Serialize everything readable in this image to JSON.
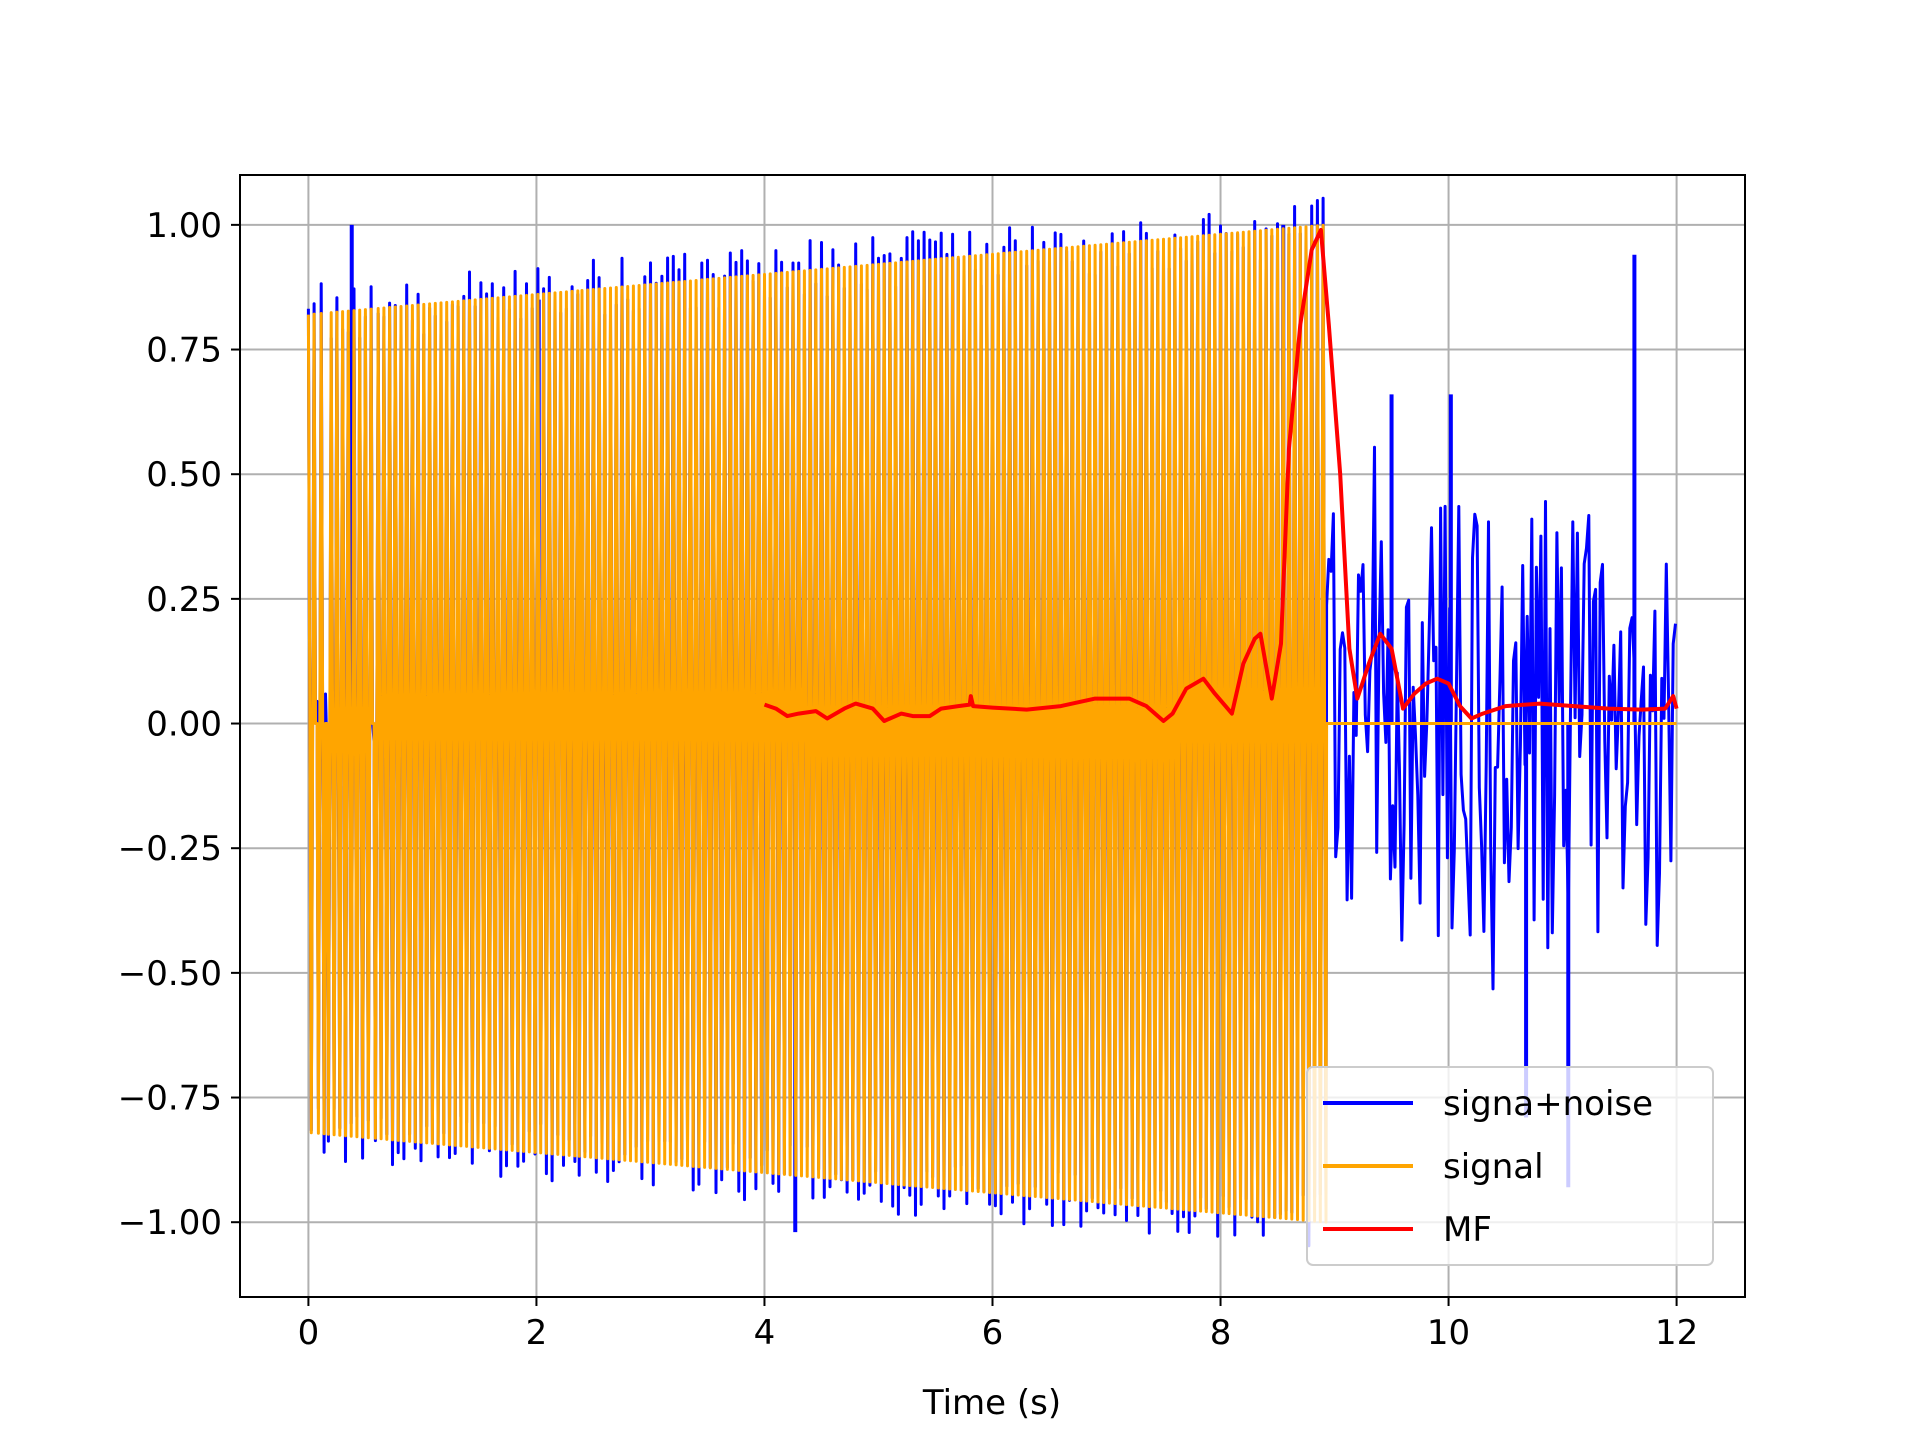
{
  "chart_data": {
    "type": "line",
    "title": "",
    "xlabel": "Time (s)",
    "ylabel": "",
    "xlim": [
      -0.6,
      12.6
    ],
    "ylim": [
      -1.15,
      1.1
    ],
    "grid": true,
    "legend_position": "lower-right",
    "x_ticks": [
      0,
      2,
      4,
      6,
      8,
      10,
      12
    ],
    "x_tick_labels": [
      "0",
      "2",
      "4",
      "6",
      "8",
      "10",
      "12"
    ],
    "y_ticks": [
      1.0,
      0.75,
      0.5,
      0.25,
      0.0,
      -0.25,
      -0.5,
      -0.75,
      -1.0
    ],
    "y_tick_labels": [
      "1.00",
      "0.75",
      "0.50",
      "0.25",
      "0.00",
      "−0.25",
      "−0.50",
      "−0.75",
      "−1.00"
    ],
    "series": [
      {
        "name": "signa+noise",
        "color": "#0000ff",
        "description_points": {
          "signal_region": {
            "x_start": 0,
            "x_end": 8.93,
            "envelope_start": 0.82,
            "envelope_end": 1.0
          },
          "noise_region": {
            "x_start": 8.93,
            "x_end": 12.0
          },
          "peaks": [
            [
              0.38,
              1.0
            ],
            [
              2.02,
              0.85
            ],
            [
              4.27,
              -1.02
            ],
            [
              8.55,
              1.0
            ],
            [
              9.5,
              0.66
            ],
            [
              10.02,
              0.66
            ],
            [
              11.63,
              0.94
            ],
            [
              10.68,
              -0.79
            ],
            [
              11.05,
              -0.93
            ]
          ]
        }
      },
      {
        "name": "signal",
        "color": "#ffa500",
        "description_points": {
          "x_start": 0,
          "x_end": 8.93,
          "envelope_start": 0.82,
          "envelope_end": 1.0,
          "zero_after": [
            8.93,
            12.0
          ]
        }
      },
      {
        "name": "MF",
        "color": "#ff0000",
        "x": [
          4.0,
          4.1,
          4.2,
          4.3,
          4.45,
          4.55,
          4.7,
          4.8,
          4.95,
          5.05,
          5.2,
          5.3,
          5.45,
          5.55,
          5.7,
          5.8,
          5.81,
          5.83,
          6.0,
          6.3,
          6.6,
          6.9,
          7.2,
          7.35,
          7.5,
          7.58,
          7.7,
          7.85,
          7.95,
          8.1,
          8.2,
          8.3,
          8.35,
          8.45,
          8.53,
          8.6,
          8.7,
          8.8,
          8.88,
          8.95,
          9.05,
          9.13,
          9.2,
          9.3,
          9.4,
          9.5,
          9.6,
          9.7,
          9.8,
          9.9,
          10.0,
          10.1,
          10.2,
          10.3,
          10.5,
          10.8,
          11.1,
          11.4,
          11.7,
          11.9,
          11.97,
          12.0
        ],
        "y": [
          0.038,
          0.03,
          0.015,
          0.02,
          0.025,
          0.01,
          0.03,
          0.04,
          0.03,
          0.005,
          0.02,
          0.015,
          0.015,
          0.03,
          0.035,
          0.038,
          0.055,
          0.035,
          0.032,
          0.028,
          0.035,
          0.05,
          0.05,
          0.035,
          0.005,
          0.02,
          0.07,
          0.09,
          0.06,
          0.02,
          0.12,
          0.17,
          0.18,
          0.05,
          0.16,
          0.55,
          0.8,
          0.95,
          0.99,
          0.8,
          0.5,
          0.15,
          0.05,
          0.12,
          0.18,
          0.15,
          0.03,
          0.06,
          0.08,
          0.09,
          0.08,
          0.035,
          0.01,
          0.02,
          0.035,
          0.04,
          0.035,
          0.03,
          0.028,
          0.03,
          0.055,
          0.03
        ]
      }
    ]
  }
}
